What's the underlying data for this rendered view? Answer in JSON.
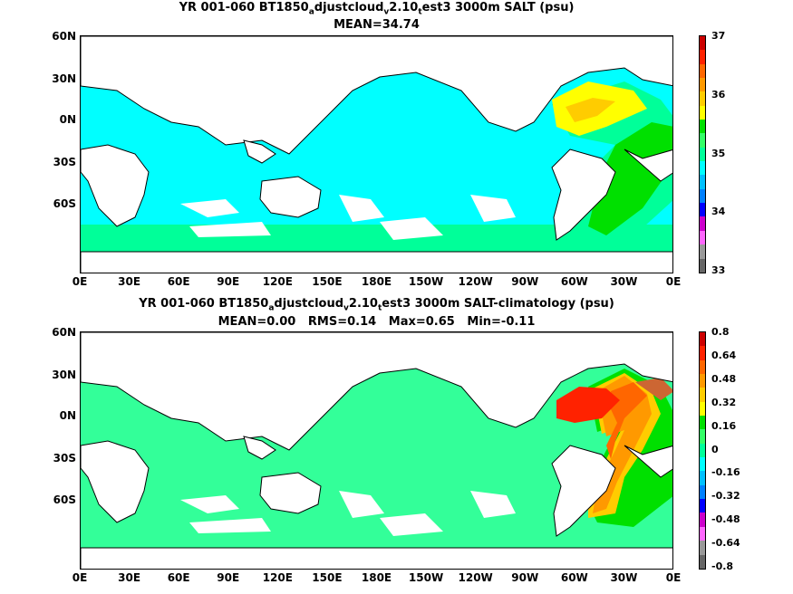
{
  "chart_data": [
    {
      "type": "heatmap",
      "title": "YR 001-060 BT1850_adjustcloud_v2.10_test3 3000m SALT (psu)",
      "title_parts": [
        "YR 001-060 BT1850",
        "a",
        "djustcloud",
        "v",
        "2.10",
        "t",
        "est3 3000m SALT (psu)"
      ],
      "subtitle": "MEAN=34.74",
      "x_ticks": [
        "0E",
        "30E",
        "60E",
        "90E",
        "120E",
        "150E",
        "180E",
        "150W",
        "120W",
        "90W",
        "60W",
        "30W",
        "0E"
      ],
      "y_ticks": [
        "60N",
        "30N",
        "0N",
        "30S",
        "60S"
      ],
      "colorbar": {
        "labels": [
          "37",
          "36",
          "35",
          "34",
          "33"
        ],
        "colors": [
          "#cc0000",
          "#ff2200",
          "#ff6600",
          "#ff9900",
          "#ffcc00",
          "#ffff00",
          "#00e000",
          "#33ff66",
          "#00ff99",
          "#00ffff",
          "#00c0ff",
          "#0080ff",
          "#0000ff",
          "#cc00cc",
          "#ff66ff",
          "#999999",
          "#666666"
        ]
      }
    },
    {
      "type": "heatmap",
      "title": "YR 001-060 BT1850_adjustcloud_v2.10_test3 3000m SALT-climatology (psu)",
      "title_parts": [
        "YR 001-060 BT1850",
        "a",
        "djustcloud",
        "v",
        "2.10",
        "t",
        "est3 3000m SALT-climatology (psu)"
      ],
      "subtitle": "MEAN=0.00   RMS=0.14   Max=0.65   Min=-0.11",
      "x_ticks": [
        "0E",
        "30E",
        "60E",
        "90E",
        "120E",
        "150E",
        "180E",
        "150W",
        "120W",
        "90W",
        "60W",
        "30W",
        "0E"
      ],
      "y_ticks": [
        "60N",
        "30N",
        "0N",
        "30S",
        "60S"
      ],
      "colorbar": {
        "labels": [
          "0.8",
          "0.64",
          "0.48",
          "0.32",
          "0.16",
          "0",
          "-0.16",
          "-0.32",
          "-0.48",
          "-0.64",
          "-0.8"
        ],
        "colors": [
          "#cc0000",
          "#ff2200",
          "#ff6600",
          "#ff9900",
          "#ffcc00",
          "#ffff00",
          "#00e000",
          "#33ff66",
          "#00ff99",
          "#00ffff",
          "#00c0ff",
          "#0080ff",
          "#0000ff",
          "#cc00cc",
          "#ff66ff",
          "#999999",
          "#666666"
        ]
      }
    }
  ],
  "colors": {
    "ocean_top": "#00ffff",
    "ocean_bottom": "#33ff99",
    "land": "#ffffff",
    "high_salinity": "#ffff00",
    "high_anomaly": "#ff2200"
  }
}
